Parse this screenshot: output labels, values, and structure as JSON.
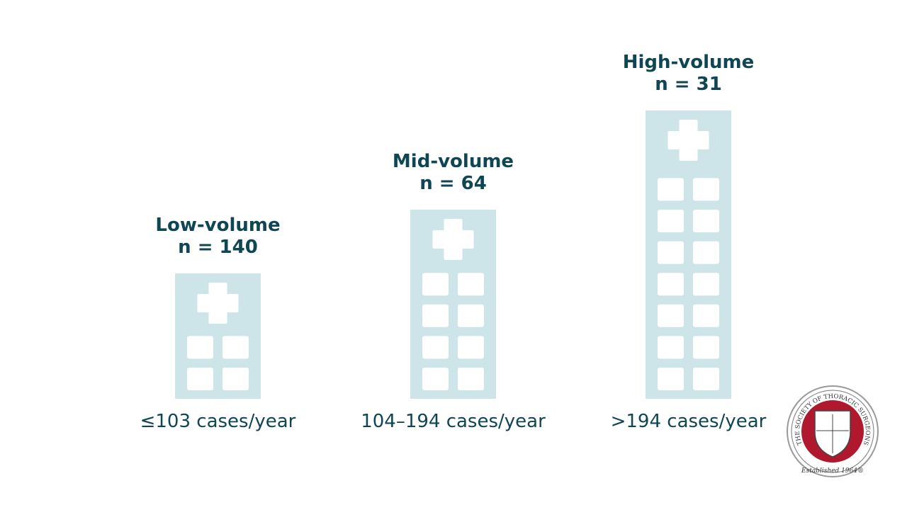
{
  "groups": [
    {
      "label": "Low-volume",
      "n": "n = 140",
      "range": "≤103 cases/year"
    },
    {
      "label": "Mid-volume",
      "n": "n = 64",
      "range": "104–194 cases/year"
    },
    {
      "label": "High-volume",
      "n": "n = 31",
      "range": ">194 cases/year"
    }
  ],
  "logo": {
    "name": "THE SOCIETY OF THORACIC SURGEONS",
    "established": "Established 1964®"
  }
}
